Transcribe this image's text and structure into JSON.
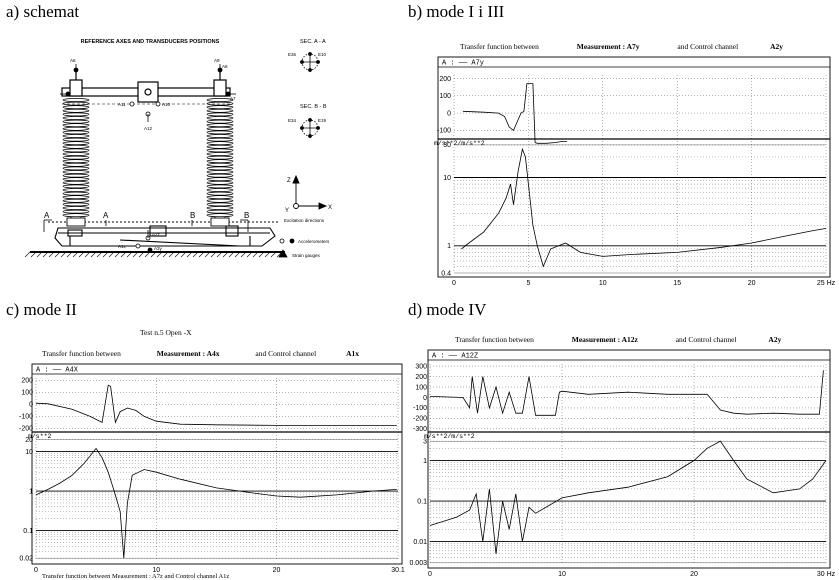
{
  "panels": {
    "a": {
      "label": "a) schemat"
    },
    "b": {
      "label": "b) mode I i III"
    },
    "c": {
      "label": "c) mode II"
    },
    "d": {
      "label": "d) mode IV"
    }
  },
  "schematic": {
    "title": "REFERENCE AXES AND TRANSDUCERS POSITIONS",
    "sec_aa": "SEC. A - A",
    "sec_bb": "SEC. B - B",
    "sensor_labels": [
      "A6",
      "A8",
      "A9",
      "A7",
      "A11",
      "A10",
      "A12",
      "A2z",
      "A1x",
      "A3y",
      "E36",
      "E10",
      "E34",
      "E19"
    ],
    "section_marks": [
      "A",
      "A",
      "B",
      "B"
    ],
    "axis_labels": {
      "z": "Z",
      "y": "Y",
      "x": "X"
    },
    "axes_caption": "Excitation directions",
    "legend_accel": "Accelerometers",
    "legend_strain": "Strain gauges"
  },
  "chart_data": [
    {
      "panel": "b",
      "type": "line",
      "title_prefix": "Transfer function between",
      "measurement": "Measurement : A7y",
      "control": "and Control channel",
      "control_ch": "A2y",
      "legend": "A : —— A7y",
      "phase_ylabel": "",
      "phase_yticks": [
        "200",
        "100",
        "0",
        "-100"
      ],
      "mag_units": "m/s**2/m/s**2",
      "mag_yticks": [
        "30",
        "10",
        "1",
        "0.4"
      ],
      "xticks": [
        "0",
        "5",
        "10",
        "15",
        "20",
        "25 Hz"
      ],
      "xlim": [
        0,
        25
      ],
      "phase": {
        "x": [
          0.6,
          2.0,
          3.0,
          3.4,
          3.7,
          4.0,
          4.3,
          4.5,
          4.7,
          4.9,
          5.3,
          5.45,
          5.6,
          6.2,
          6.8,
          7.2,
          7.6
        ],
        "y": [
          10,
          5,
          0,
          -20,
          -80,
          -100,
          -40,
          0,
          10,
          170,
          170,
          -170,
          -175,
          -175,
          -170,
          -165,
          -165
        ]
      },
      "magnitude": {
        "x": [
          0.5,
          1.0,
          2.0,
          3.0,
          3.5,
          3.8,
          4.0,
          4.3,
          4.6,
          4.8,
          5.0,
          5.3,
          5.6,
          6.0,
          6.5,
          7.5,
          8.5,
          10,
          12,
          15,
          18,
          20,
          22,
          24,
          25
        ],
        "y": [
          0.9,
          1.1,
          1.6,
          3.0,
          5.0,
          8.0,
          4.0,
          12.0,
          26.0,
          20.0,
          8.0,
          2.0,
          1.0,
          0.5,
          0.9,
          1.1,
          0.8,
          0.7,
          0.75,
          0.8,
          0.95,
          1.1,
          1.35,
          1.65,
          1.8
        ]
      }
    },
    {
      "panel": "c",
      "type": "line",
      "top_caption": "Test n.5     Open -X",
      "title_prefix": "Transfer function between",
      "measurement": "Measurement : A4x",
      "control": "and Control channel",
      "control_ch": "A1x",
      "legend": "A : —— A4X",
      "phase_yticks": [
        "200",
        "100",
        "0",
        "-100",
        "-200"
      ],
      "mag_units": "m/s**2",
      "mag_yticks": [
        "20",
        "10",
        "1",
        "0.1",
        "0.02"
      ],
      "xticks": [
        "0",
        "10",
        "20",
        "30.1"
      ],
      "xlim": [
        0,
        30.1
      ],
      "bottom_caption": "Transfer function between     Measurement : A7z     and Control channel     A1z",
      "phase": {
        "x": [
          0,
          1,
          3,
          4.5,
          5.5,
          6,
          6.2,
          6.6,
          7,
          7.6,
          8.3,
          9,
          10,
          12,
          15,
          20,
          25,
          30
        ],
        "y": [
          10,
          5,
          -40,
          -100,
          -150,
          160,
          150,
          -150,
          -60,
          -30,
          -50,
          -100,
          -140,
          -165,
          -170,
          -175,
          -175,
          -175
        ]
      },
      "magnitude": {
        "x": [
          0,
          1,
          2,
          3,
          4,
          5,
          5.5,
          6,
          6.5,
          7,
          7.3,
          7.6,
          8,
          9,
          10,
          12,
          15,
          18,
          20,
          22,
          25,
          28,
          30
        ],
        "y": [
          0.8,
          1.1,
          1.6,
          2.5,
          5.0,
          12.0,
          7.0,
          3.0,
          1.0,
          0.3,
          0.02,
          0.5,
          2.5,
          3.5,
          3.0,
          2.0,
          1.2,
          0.9,
          0.75,
          0.7,
          0.8,
          1.0,
          1.1
        ]
      }
    },
    {
      "panel": "d",
      "type": "line",
      "title_prefix": "Transfer function between",
      "measurement": "Measurement : A12z",
      "control": "and Control channel",
      "control_ch": "A2y",
      "legend": "A : —— A12Z",
      "phase_yticks": [
        "300",
        "200",
        "100",
        "0",
        "-100",
        "-200",
        "-300"
      ],
      "mag_units": "m/s**2/m/s**2",
      "mag_yticks": [
        "3",
        "1",
        "0.1",
        "0.01",
        "0.003"
      ],
      "xticks": [
        "0",
        "10",
        "20",
        "30 Hz"
      ],
      "xlim": [
        0,
        30
      ],
      "phase": {
        "x": [
          0,
          2.5,
          3,
          3.2,
          3.6,
          4,
          4.5,
          5,
          5.5,
          6,
          6.5,
          7,
          7.5,
          8,
          9.5,
          9.8,
          10,
          12,
          15,
          18,
          21,
          22,
          23,
          24,
          26,
          28,
          29.5,
          29.8
        ],
        "y": [
          10,
          0,
          -100,
          200,
          -150,
          200,
          -100,
          100,
          -150,
          50,
          -150,
          -150,
          200,
          -170,
          -170,
          50,
          60,
          30,
          50,
          30,
          30,
          -120,
          -150,
          -160,
          -150,
          -160,
          -160,
          260
        ]
      },
      "magnitude": {
        "x": [
          0,
          2,
          3,
          3.5,
          4,
          4.5,
          5,
          5.5,
          6,
          6.5,
          7,
          7.5,
          8,
          10,
          12,
          15,
          18,
          20,
          21,
          22,
          23,
          24,
          26,
          28,
          29,
          30
        ],
        "y": [
          0.025,
          0.04,
          0.06,
          0.15,
          0.01,
          0.2,
          0.005,
          0.1,
          0.02,
          0.15,
          0.01,
          0.07,
          0.05,
          0.12,
          0.16,
          0.22,
          0.4,
          1.0,
          2.0,
          3.0,
          1.0,
          0.35,
          0.16,
          0.2,
          0.35,
          1.0
        ]
      }
    }
  ]
}
